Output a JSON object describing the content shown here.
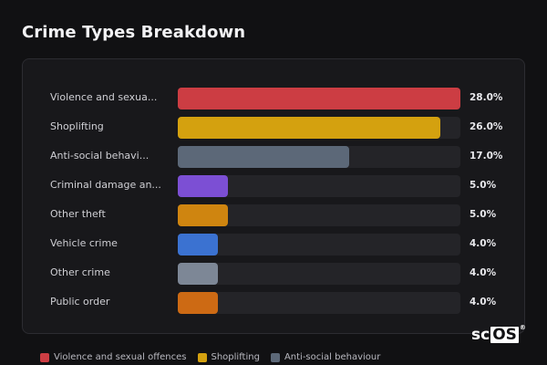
{
  "title": "Crime Types Breakdown",
  "chart_data": {
    "type": "bar",
    "orientation": "horizontal",
    "categories": [
      "Violence and sexua...",
      "Shoplifting",
      "Anti-social behavi...",
      "Criminal damage an...",
      "Other theft",
      "Vehicle crime",
      "Other crime",
      "Public order"
    ],
    "values": [
      28.0,
      26.0,
      17.0,
      5.0,
      5.0,
      4.0,
      4.0,
      4.0
    ],
    "value_labels": [
      "28.0%",
      "26.0%",
      "17.0%",
      "5.0%",
      "5.0%",
      "4.0%",
      "4.0%",
      "4.0%"
    ],
    "colors": [
      "#cc3d43",
      "#d4a10f",
      "#5c6878",
      "#7c4fd4",
      "#cf8510",
      "#3b72d1",
      "#7d8796",
      "#cd6a14"
    ],
    "xlim": [
      0,
      28
    ],
    "grid": false,
    "legend_position": "bottom-left",
    "legend": [
      {
        "label": "Violence and sexual offences",
        "color": "#cc3d43"
      },
      {
        "label": "Shoplifting",
        "color": "#d4a10f"
      },
      {
        "label": "Anti-social behaviour",
        "color": "#5c6878"
      }
    ]
  },
  "logo": {
    "prefix": "sc",
    "boxed": "OS",
    "mark": "®"
  }
}
